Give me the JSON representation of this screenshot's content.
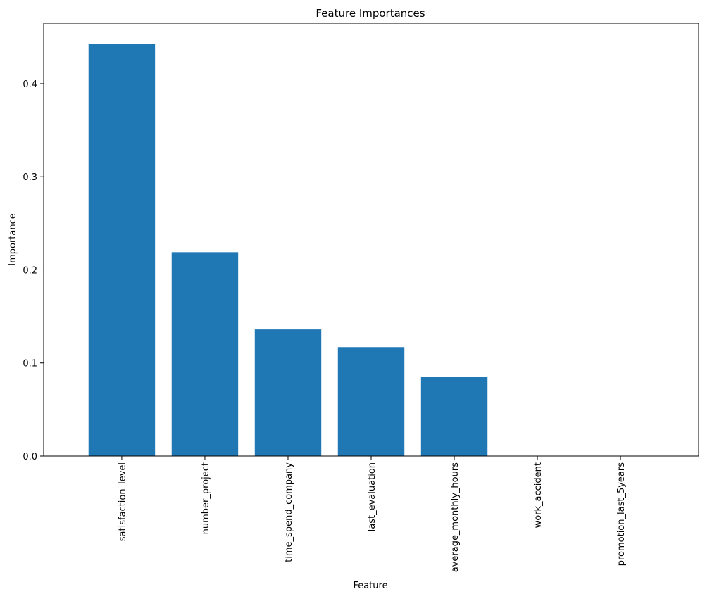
{
  "chart_data": {
    "type": "bar",
    "title": "Feature Importances",
    "xlabel": "Feature",
    "ylabel": "Importance",
    "categories": [
      "satisfaction_level",
      "number_project",
      "time_spend_company",
      "last_evaluation",
      "average_monthly_hours",
      "work_accident",
      "promotion_last_5years"
    ],
    "values": [
      0.443,
      0.219,
      0.136,
      0.117,
      0.085,
      0.0,
      0.0
    ],
    "ylim": [
      0,
      0.465
    ],
    "yticks": [
      0.0,
      0.1,
      0.2,
      0.3,
      0.4
    ],
    "ytick_labels": [
      "0.0",
      "0.1",
      "0.2",
      "0.3",
      "0.4"
    ],
    "grid": false,
    "bar_color": "#1f77b4"
  }
}
